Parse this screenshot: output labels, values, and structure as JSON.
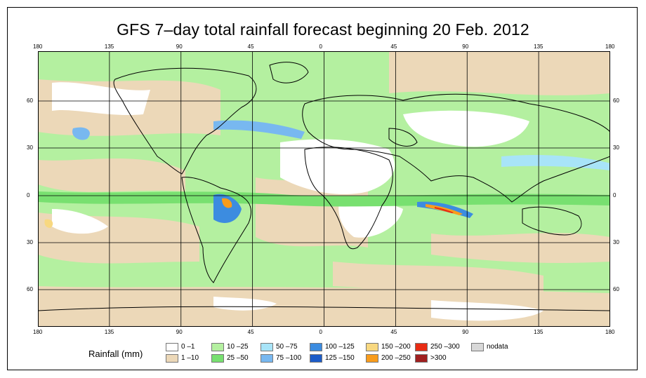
{
  "title": "GFS 7–day total rainfall forecast beginning 20 Feb. 2012",
  "axes": {
    "lon_ticks": [
      "180",
      "135",
      "90",
      "45",
      "0",
      "45",
      "90",
      "135",
      "180"
    ],
    "lat_ticks": [
      "60",
      "30",
      "0",
      "30",
      "60"
    ]
  },
  "legend": {
    "title": "Rainfall (mm)",
    "items": [
      {
        "label": "0 –1",
        "color": "#ffffff"
      },
      {
        "label": "1 –10",
        "color": "#ecd8b8"
      },
      {
        "label": "10 –25",
        "color": "#b4f0a0"
      },
      {
        "label": "25 –50",
        "color": "#78e070"
      },
      {
        "label": "50 –75",
        "color": "#a8e4f8"
      },
      {
        "label": "75 –100",
        "color": "#78b8f0"
      },
      {
        "label": "100 –125",
        "color": "#3c8ce0"
      },
      {
        "label": "125 –150",
        "color": "#1c5cc8"
      },
      {
        "label": "150 –200",
        "color": "#f8d880"
      },
      {
        "label": "200 –250",
        "color": "#f89c1c"
      },
      {
        "label": "250 –300",
        "color": "#e82c14"
      },
      {
        "label": ">300",
        "color": "#a02020"
      },
      {
        "label": "nodata",
        "color": "#d8d8d8"
      }
    ]
  },
  "map": {
    "ocean_base_color": "#b4f0a0",
    "land_dry_color": "#ffffff",
    "coast_color": "#000000",
    "grid_color": "#000000"
  }
}
